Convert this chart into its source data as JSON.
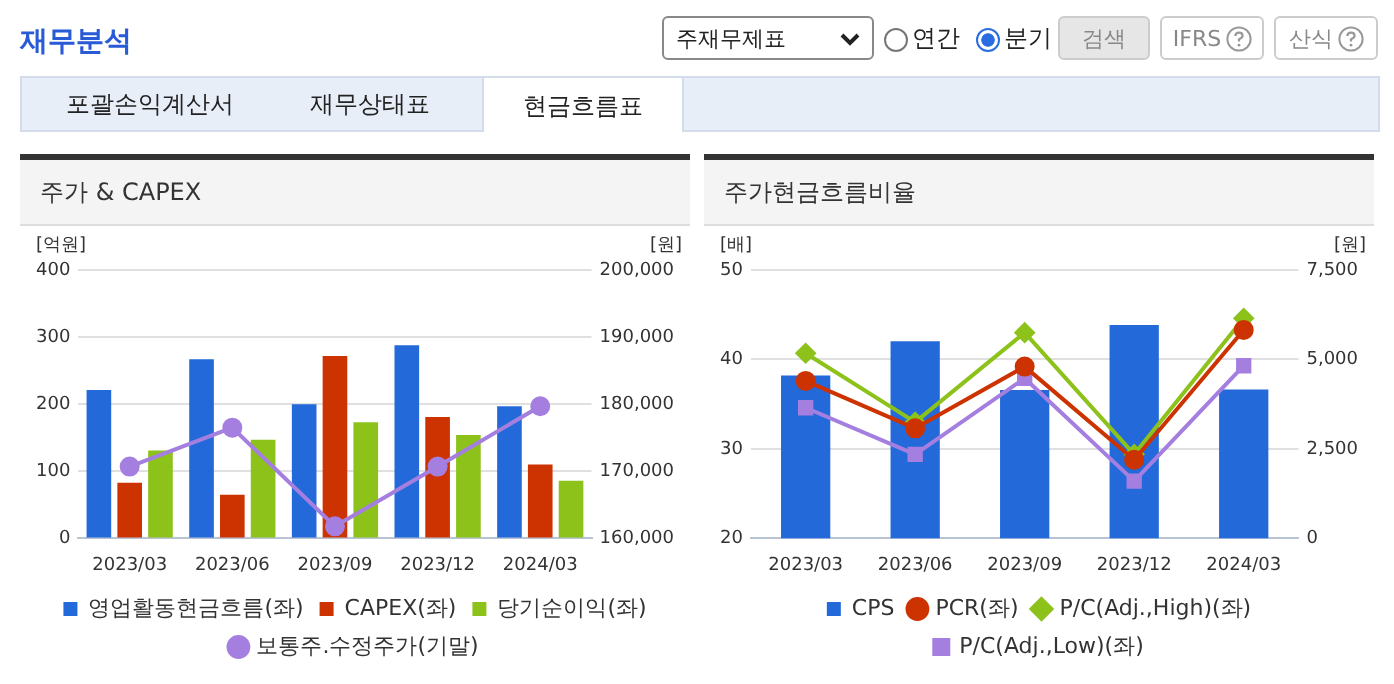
{
  "chart_data": [
    {
      "type": "other",
      "title": "재무분석",
      "annotations": [
        "주재무제표",
        "연간",
        "분기",
        "검색",
        "IFRS",
        "산식",
        "포괄손익계산서",
        "재무상태표",
        "현금흐름표"
      ]
    },
    {
      "type": "bar",
      "title": "주가 & CAPEX",
      "ylabel": "[억원]",
      "y2label": "[원]",
      "categories": [
        "2023/03",
        "2023/06",
        "2023/09",
        "2023/12",
        "2024/03"
      ],
      "series": [
        {
          "name": "영업활동현금흐름(좌)",
          "color": "#2369d9",
          "values": [
            221,
            267,
            200,
            288,
            197
          ]
        },
        {
          "name": "CAPEX(좌)",
          "color": "#cc3300",
          "values": [
            83,
            65,
            272,
            181,
            110
          ]
        },
        {
          "name": "당기순이익(좌)",
          "color": "#8cc21a",
          "values": [
            131,
            147,
            173,
            154,
            86
          ]
        },
        {
          "name": "보통주.수정주가(기말)",
          "type": "line",
          "axis": "y2",
          "marker": "circle",
          "color": "#a57fe0",
          "values": [
            170700,
            176500,
            161800,
            170700,
            179700
          ]
        }
      ],
      "ylim": [
        0,
        400
      ],
      "yticks": [
        0,
        100,
        200,
        300,
        400
      ],
      "y2lim": [
        160000,
        200000
      ],
      "y2ticks": [
        {
          "value": 160000,
          "label": "160,000"
        },
        {
          "value": 170000,
          "label": "170,000"
        },
        {
          "value": 180000,
          "label": "180,000"
        },
        {
          "value": 190000,
          "label": "190,000"
        },
        {
          "value": 200000,
          "label": "200,000"
        }
      ],
      "grid": "y",
      "legend": "bottom"
    },
    {
      "type": "line",
      "title": "주가현금흐름비율",
      "ylabel": "[배]",
      "y2label": "[원]",
      "categories": [
        "2023/03",
        "2023/06",
        "2023/09",
        "2023/12",
        "2024/03"
      ],
      "series": [
        {
          "name": "CPS",
          "type": "bar",
          "axis": "y2",
          "color": "#2369d9",
          "values": [
            4550,
            5510,
            4150,
            5960,
            4160
          ]
        },
        {
          "name": "PCR(좌)",
          "marker": "circle",
          "color": "#cc3300",
          "values": [
            37.6,
            32.3,
            39.2,
            28.8,
            43.3
          ]
        },
        {
          "name": "P/C(Adj.,High)(좌)",
          "marker": "diamond",
          "color": "#8cc21a",
          "values": [
            40.7,
            33.0,
            43.0,
            29.4,
            44.6
          ]
        },
        {
          "name": "P/C(Adj.,Low)(좌)",
          "marker": "square",
          "color": "#a57fe0",
          "values": [
            34.6,
            29.4,
            37.9,
            26.4,
            39.3
          ]
        }
      ],
      "ylim": [
        20,
        50
      ],
      "yticks": [
        20,
        30,
        40,
        50
      ],
      "y2lim": [
        0,
        7500
      ],
      "y2ticks": [
        0,
        {
          "value": 2500,
          "label": "2,500"
        },
        {
          "value": 5000,
          "label": "5,000"
        },
        {
          "value": 7500,
          "label": "7,500"
        }
      ],
      "grid": "y",
      "legend": "bottom"
    }
  ]
}
